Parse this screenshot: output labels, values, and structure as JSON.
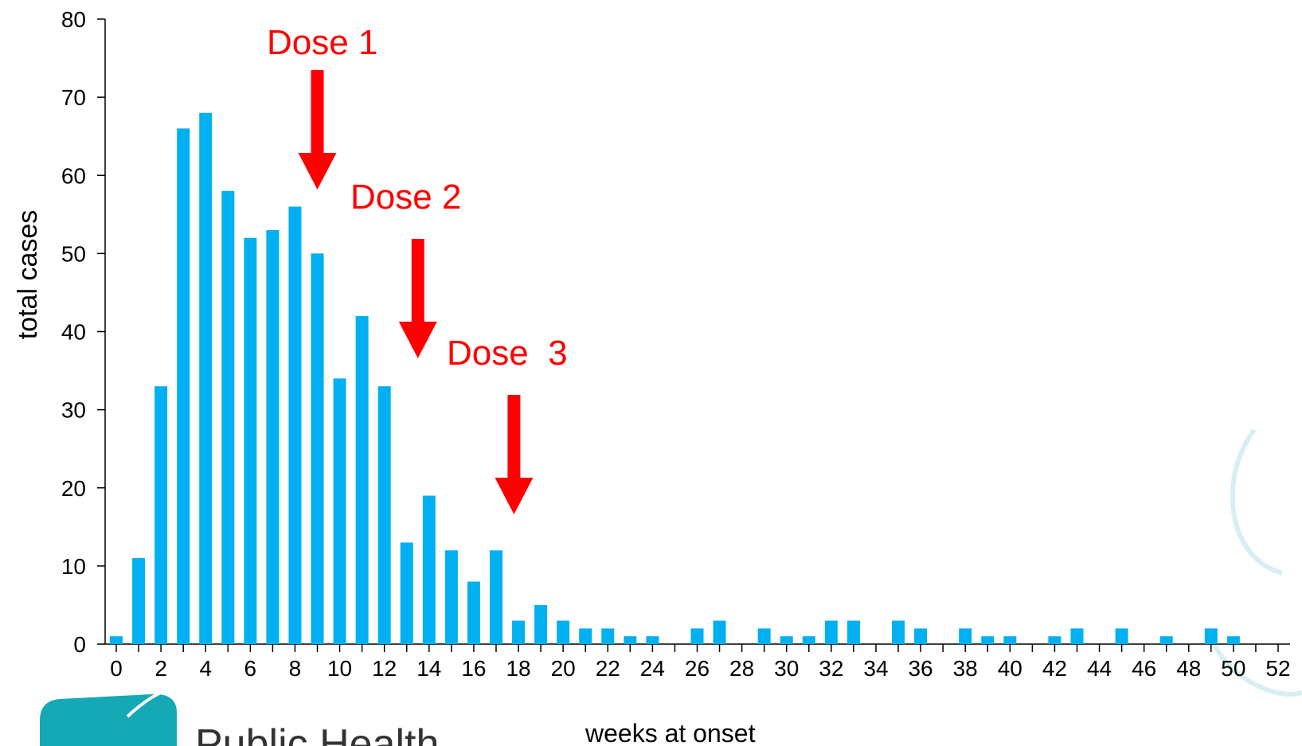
{
  "chart_data": {
    "type": "bar",
    "title": "",
    "xlabel": "weeks at onset",
    "ylabel": "total cases",
    "ylim": [
      0,
      80
    ],
    "yticks": [
      0,
      10,
      20,
      30,
      40,
      50,
      60,
      70,
      80
    ],
    "xlim": [
      0,
      52
    ],
    "xticks": [
      0,
      2,
      4,
      6,
      8,
      10,
      12,
      14,
      16,
      18,
      20,
      22,
      24,
      26,
      28,
      30,
      32,
      34,
      36,
      38,
      40,
      42,
      44,
      46,
      48,
      50,
      52
    ],
    "x": [
      0,
      1,
      2,
      3,
      4,
      5,
      6,
      7,
      8,
      9,
      10,
      11,
      12,
      13,
      14,
      15,
      16,
      17,
      18,
      19,
      20,
      21,
      22,
      23,
      24,
      25,
      26,
      27,
      28,
      29,
      30,
      31,
      32,
      33,
      34,
      35,
      36,
      37,
      38,
      39,
      40,
      41,
      42,
      43,
      44,
      45,
      46,
      47,
      48,
      49,
      50,
      51
    ],
    "values": [
      1,
      11,
      33,
      66,
      68,
      58,
      52,
      53,
      56,
      50,
      34,
      42,
      33,
      13,
      19,
      12,
      8,
      12,
      3,
      5,
      3,
      2,
      2,
      1,
      1,
      0,
      2,
      3,
      0,
      2,
      1,
      1,
      3,
      3,
      0,
      3,
      2,
      0,
      2,
      1,
      1,
      0,
      1,
      2,
      0,
      2,
      0,
      1,
      0,
      2,
      1,
      0
    ],
    "bar_color": "#00b0f0",
    "grid": false,
    "annotations": [
      {
        "text": "Dose 1",
        "x": 9,
        "color": "#ff0000"
      },
      {
        "text": "Dose 2",
        "x": 13.5,
        "color": "#ff0000"
      },
      {
        "text": "Dose  3",
        "x": 17.8,
        "color": "#ff0000"
      }
    ]
  },
  "logo": {
    "text": "Public Health",
    "badge_color": "#14a9b5"
  }
}
